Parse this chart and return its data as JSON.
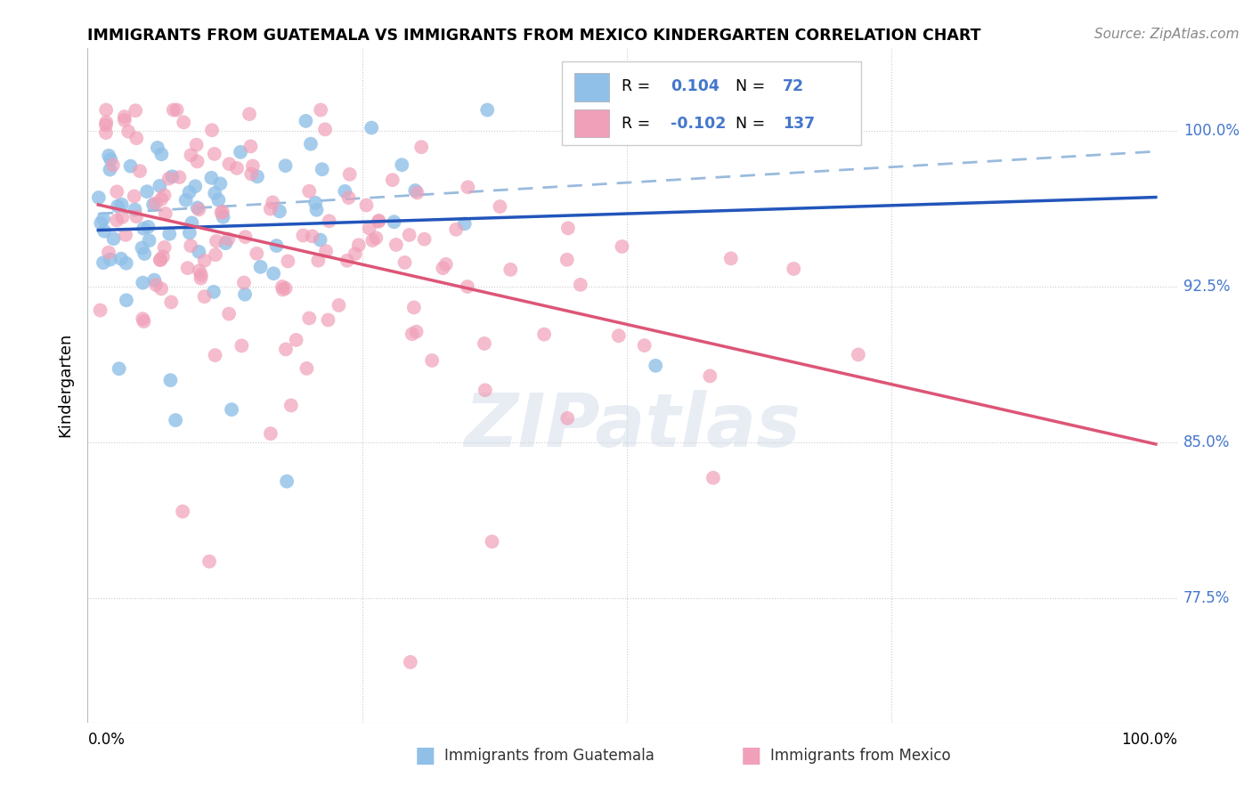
{
  "title": "IMMIGRANTS FROM GUATEMALA VS IMMIGRANTS FROM MEXICO KINDERGARTEN CORRELATION CHART",
  "source": "Source: ZipAtlas.com",
  "ylabel": "Kindergarten",
  "color_blue": "#90c0e8",
  "color_pink": "#f0a0b8",
  "color_trend_blue": "#2255bb",
  "color_trend_pink": "#dd5577",
  "color_dashed": "#99bbdd",
  "color_grid": "#cccccc",
  "color_ytick": "#4477cc",
  "ytick_values": [
    0.775,
    0.85,
    0.925,
    1.0
  ],
  "ytick_labels": [
    "77.5%",
    "85.0%",
    "92.5%",
    "100.0%"
  ],
  "xlim": [
    -0.01,
    1.02
  ],
  "ylim": [
    0.715,
    1.04
  ],
  "r_blue": "0.104",
  "n_blue": "72",
  "r_pink": "-0.102",
  "n_pink": "137",
  "legend_label_blue": "Immigrants from Guatemala",
  "legend_label_pink": "Immigrants from Mexico"
}
